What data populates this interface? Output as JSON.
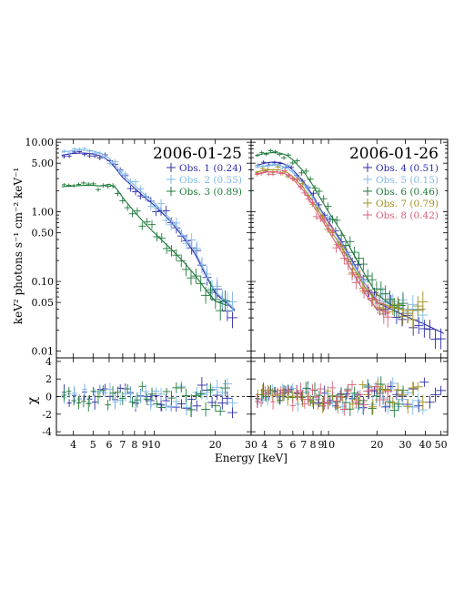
{
  "chart_data": {
    "type": "scatter",
    "ylabel": "keV² photons s⁻¹ cm⁻² keV⁻¹",
    "xlabel": "Energy [keV]",
    "residual_ylabel": "χ",
    "top_yticks": [
      "10.00",
      "5.00",
      "1.00",
      "0.50",
      "0.10",
      "0.05",
      "0.01"
    ],
    "top_ytick_values": [
      10,
      5,
      1,
      0.5,
      0.1,
      0.05,
      0.01
    ],
    "residual_yticks": [
      "4",
      "2",
      "0",
      "-2",
      "-4"
    ],
    "residual_ytick_values": [
      4,
      2,
      0,
      -2,
      -4
    ],
    "ylim": [
      0.008,
      11
    ],
    "residual_ylim": [
      -4.4,
      4.4
    ],
    "panels": [
      {
        "date": "2006-01-25",
        "xlim": [
          3.3,
          30
        ],
        "xtick_labels": [
          "4",
          "5",
          "6",
          "7",
          "8",
          "9",
          "10",
          "20",
          "30"
        ],
        "xtick_values": [
          4,
          5,
          6,
          7,
          8,
          9,
          10,
          20,
          30
        ],
        "series": [
          {
            "name": "Obs. 1",
            "value": "(0.24)",
            "color": "#2b2ba8",
            "model": [
              [
                3.5,
                6.5
              ],
              [
                4,
                6.9
              ],
              [
                4.5,
                7.0
              ],
              [
                5,
                6.8
              ],
              [
                5.5,
                6.3
              ],
              [
                6,
                5.4
              ],
              [
                6.5,
                4.1
              ],
              [
                7,
                3.1
              ],
              [
                8,
                2.2
              ],
              [
                9,
                1.6
              ],
              [
                10,
                1.25
              ],
              [
                12,
                0.74
              ],
              [
                14,
                0.42
              ],
              [
                16,
                0.24
              ],
              [
                18,
                0.12
              ],
              [
                20,
                0.068
              ],
              [
                25,
                0.038
              ]
            ]
          },
          {
            "name": "Obs. 2",
            "value": "(0.55)",
            "color": "#7fb8e8",
            "model": [
              [
                3.5,
                7.2
              ],
              [
                4,
                7.6
              ],
              [
                4.5,
                7.7
              ],
              [
                5,
                7.5
              ],
              [
                5.5,
                6.9
              ],
              [
                6,
                5.9
              ],
              [
                6.5,
                4.5
              ],
              [
                7,
                3.4
              ],
              [
                8,
                2.4
              ],
              [
                9,
                1.75
              ],
              [
                10,
                1.35
              ],
              [
                12,
                0.8
              ],
              [
                14,
                0.45
              ],
              [
                16,
                0.26
              ],
              [
                18,
                0.13
              ],
              [
                20,
                0.072
              ],
              [
                25,
                0.04
              ]
            ]
          },
          {
            "name": "Obs. 3",
            "value": "(0.89)",
            "color": "#1f7a3a",
            "model": [
              [
                3.5,
                2.3
              ],
              [
                4,
                2.35
              ],
              [
                4.5,
                2.4
              ],
              [
                5,
                2.4
              ],
              [
                5.5,
                2.35
              ],
              [
                6,
                2.5
              ],
              [
                6.5,
                2.2
              ],
              [
                7,
                1.6
              ],
              [
                8,
                1.0
              ],
              [
                9,
                0.68
              ],
              [
                10,
                0.5
              ],
              [
                12,
                0.3
              ],
              [
                14,
                0.19
              ],
              [
                16,
                0.12
              ],
              [
                18,
                0.075
              ],
              [
                20,
                0.052
              ],
              [
                23,
                0.045
              ]
            ]
          }
        ]
      },
      {
        "date": "2006-01-26",
        "xlim": [
          3.3,
          55
        ],
        "xtick_labels": [
          "4",
          "5",
          "6",
          "7",
          "8",
          "9",
          "10",
          "20",
          "30",
          "40",
          "50"
        ],
        "xtick_values": [
          4,
          5,
          6,
          7,
          8,
          9,
          10,
          20,
          30,
          40,
          50
        ],
        "series": [
          {
            "name": "Obs. 4",
            "value": "(0.51)",
            "color": "#2b2ba8",
            "model": [
              [
                3.5,
                4.6
              ],
              [
                4,
                5.0
              ],
              [
                4.5,
                5.2
              ],
              [
                5,
                5.1
              ],
              [
                5.5,
                4.7
              ],
              [
                6,
                4.0
              ],
              [
                7,
                2.7
              ],
              [
                8,
                1.7
              ],
              [
                9,
                1.05
              ],
              [
                10,
                0.72
              ],
              [
                12,
                0.38
              ],
              [
                14,
                0.2
              ],
              [
                17,
                0.09
              ],
              [
                20,
                0.05
              ],
              [
                30,
                0.032
              ],
              [
                40,
                0.024
              ],
              [
                52,
                0.018
              ]
            ]
          },
          {
            "name": "Obs. 5",
            "value": "(0.15)",
            "color": "#7fb8e8",
            "model": [
              [
                3.5,
                4.3
              ],
              [
                4,
                4.6
              ],
              [
                4.5,
                4.7
              ],
              [
                5,
                4.6
              ],
              [
                5.5,
                4.3
              ],
              [
                6,
                3.7
              ],
              [
                7,
                2.5
              ],
              [
                8,
                1.6
              ],
              [
                9,
                1.0
              ],
              [
                10,
                0.68
              ],
              [
                12,
                0.36
              ],
              [
                14,
                0.19
              ],
              [
                17,
                0.09
              ],
              [
                20,
                0.055
              ],
              [
                30,
                0.04
              ],
              [
                40,
                0.04
              ]
            ]
          },
          {
            "name": "Obs. 6",
            "value": "(0.46)",
            "color": "#1f7a3a",
            "model": [
              [
                3.5,
                6.4
              ],
              [
                4,
                6.9
              ],
              [
                4.5,
                7.1
              ],
              [
                5,
                7.0
              ],
              [
                5.5,
                6.5
              ],
              [
                6,
                5.6
              ],
              [
                7,
                3.8
              ],
              [
                8,
                2.4
              ],
              [
                9,
                1.5
              ],
              [
                10,
                1.0
              ],
              [
                12,
                0.52
              ],
              [
                14,
                0.27
              ],
              [
                17,
                0.12
              ],
              [
                20,
                0.065
              ],
              [
                25,
                0.045
              ],
              [
                30,
                0.045
              ]
            ]
          },
          {
            "name": "Obs. 7",
            "value": "(0.79)",
            "color": "#a09020",
            "model": [
              [
                3.5,
                3.7
              ],
              [
                4,
                3.95
              ],
              [
                4.5,
                4.05
              ],
              [
                5,
                4.0
              ],
              [
                5.5,
                3.7
              ],
              [
                6,
                3.2
              ],
              [
                7,
                2.2
              ],
              [
                8,
                1.4
              ],
              [
                9,
                0.9
              ],
              [
                10,
                0.6
              ],
              [
                12,
                0.32
              ],
              [
                14,
                0.17
              ],
              [
                17,
                0.08
              ],
              [
                20,
                0.05
              ],
              [
                30,
                0.038
              ],
              [
                40,
                0.04
              ]
            ]
          },
          {
            "name": "Obs. 8",
            "value": "(0.42)",
            "color": "#d9607a",
            "model": [
              [
                3.5,
                3.5
              ],
              [
                4,
                3.7
              ],
              [
                4.5,
                3.8
              ],
              [
                5,
                3.7
              ],
              [
                5.5,
                3.45
              ],
              [
                6,
                2.95
              ],
              [
                7,
                2.0
              ],
              [
                8,
                1.25
              ],
              [
                9,
                0.8
              ],
              [
                10,
                0.53
              ],
              [
                12,
                0.27
              ],
              [
                14,
                0.14
              ],
              [
                17,
                0.065
              ],
              [
                20,
                0.04
              ],
              [
                24,
                0.035
              ]
            ]
          }
        ]
      }
    ]
  }
}
